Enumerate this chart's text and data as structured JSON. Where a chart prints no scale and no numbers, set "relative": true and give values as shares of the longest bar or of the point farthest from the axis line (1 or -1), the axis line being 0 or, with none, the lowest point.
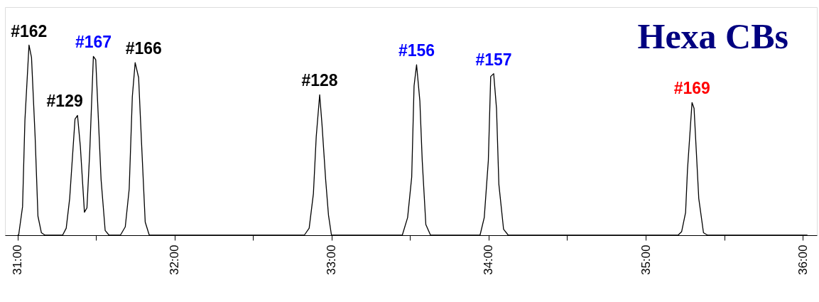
{
  "chart_data": {
    "type": "line",
    "relative": true,
    "title": "Hexa CBs",
    "x": [
      31.0,
      31.007,
      31.032,
      31.047,
      31.073,
      31.089,
      31.112,
      31.13,
      31.152,
      31.175,
      31.287,
      31.31,
      31.332,
      31.366,
      31.382,
      31.4,
      31.426,
      31.442,
      31.46,
      31.483,
      31.498,
      31.532,
      31.558,
      31.583,
      31.655,
      31.686,
      31.711,
      31.731,
      31.749,
      31.771,
      31.79,
      31.813,
      31.839,
      32.826,
      32.857,
      32.884,
      32.902,
      32.924,
      32.939,
      32.962,
      32.98,
      32.999,
      33.45,
      33.484,
      33.51,
      33.525,
      33.541,
      33.562,
      33.577,
      33.6,
      33.63,
      33.945,
      33.972,
      33.998,
      34.013,
      34.032,
      34.05,
      34.065,
      34.095,
      34.125,
      35.206,
      35.229,
      35.254,
      35.266,
      35.295,
      35.308,
      35.338,
      35.368,
      35.394,
      36.03
    ],
    "series": [
      {
        "color": "#000000",
        "values": [
          0,
          0,
          0.15,
          0.605,
          1.0,
          0.935,
          0.518,
          0.1,
          0.013,
          0,
          0,
          0.037,
          0.193,
          0.611,
          0.63,
          0.467,
          0.121,
          0.144,
          0.443,
          0.941,
          0.923,
          0.293,
          0.025,
          0,
          0,
          0.044,
          0.243,
          0.729,
          0.908,
          0.829,
          0.48,
          0.069,
          0,
          0,
          0.037,
          0.218,
          0.518,
          0.739,
          0.58,
          0.293,
          0.106,
          0,
          0,
          0.093,
          0.306,
          0.785,
          0.897,
          0.705,
          0.393,
          0.056,
          0,
          0,
          0.093,
          0.393,
          0.835,
          0.85,
          0.667,
          0.268,
          0.031,
          0,
          0,
          0.019,
          0.119,
          0.343,
          0.698,
          0.667,
          0.193,
          0.013,
          0,
          0
        ]
      }
    ],
    "xlim": [
      30.92,
      36.09
    ],
    "xticks": [
      {
        "value": 31,
        "label": "31:00"
      },
      {
        "value": 31.5,
        "label": null
      },
      {
        "value": 32,
        "label": "32:00"
      },
      {
        "value": 32.5,
        "label": null
      },
      {
        "value": 33,
        "label": "33:00"
      },
      {
        "value": 33.5,
        "label": null
      },
      {
        "value": 34,
        "label": "34:00"
      },
      {
        "value": 34.5,
        "label": null
      },
      {
        "value": 35,
        "label": "35:00"
      },
      {
        "value": 35.5,
        "label": null
      },
      {
        "value": 36,
        "label": "36:00"
      }
    ],
    "annotations": [
      {
        "text": "#162",
        "x": 31.073,
        "y": 1.0
      },
      {
        "text": "#129",
        "x": 31.382,
        "y": 0.63
      },
      {
        "text": "#167",
        "x": 31.483,
        "y": 0.941
      },
      {
        "text": "#166",
        "x": 31.749,
        "y": 0.908
      },
      {
        "text": "#128",
        "x": 32.924,
        "y": 0.739
      },
      {
        "text": "#156",
        "x": 33.541,
        "y": 0.897
      },
      {
        "text": "#157",
        "x": 34.032,
        "y": 0.85
      },
      {
        "text": "#169",
        "x": 35.295,
        "y": 0.698
      }
    ],
    "grid": false,
    "marker": "none",
    "line_style": "solid"
  }
}
